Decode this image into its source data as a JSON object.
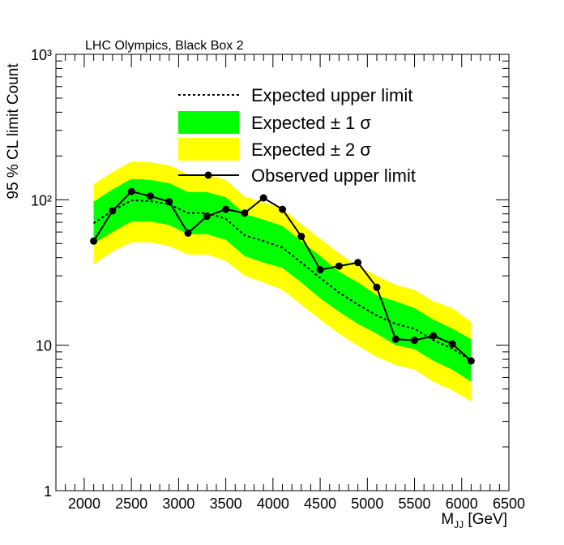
{
  "chart_data": {
    "type": "line",
    "title": "LHC Olympics, Black Box 2",
    "y_label": "95 % CL limit Count",
    "x_label": {
      "main": "M",
      "subscript": "JJ",
      "unit": "[GeV]"
    },
    "x": [
      2100,
      2300,
      2500,
      2700,
      2900,
      3100,
      3300,
      3500,
      3700,
      3900,
      4100,
      4300,
      4500,
      4700,
      4900,
      5100,
      5300,
      5500,
      5700,
      5900,
      6100
    ],
    "xlim": [
      1700,
      6500
    ],
    "xticks": [
      2000,
      2500,
      3000,
      3500,
      4000,
      4500,
      5000,
      5500,
      6000,
      6500
    ],
    "ylim": [
      1,
      1000
    ],
    "yscale": "log",
    "yticks": [
      1,
      10,
      {
        "value": 100,
        "label": "10²"
      },
      {
        "value": 1000,
        "label": "10³"
      }
    ],
    "series": [
      {
        "name": "Expected upper limit",
        "style": "dotted",
        "color": "#000000",
        "values": [
          69,
          84,
          99,
          98,
          93,
          81,
          81,
          74,
          57,
          52,
          47,
          37,
          29,
          23,
          19,
          16,
          14,
          13,
          10.8,
          9.5,
          7.8
        ]
      },
      {
        "name": "Expected ± 1 σ",
        "style": "band",
        "color": "#00ff00",
        "upper": [
          97,
          118,
          139,
          137,
          130,
          113,
          113,
          104,
          80,
          73,
          66,
          52,
          41,
          32,
          27,
          22,
          20,
          18,
          15,
          13,
          11
        ],
        "lower": [
          50,
          60,
          71,
          71,
          67,
          58,
          58,
          53,
          41,
          37,
          34,
          27,
          21,
          17,
          14,
          12,
          10,
          9.4,
          7.8,
          6.8,
          5.6
        ]
      },
      {
        "name": "Expected ± 2 σ",
        "style": "band",
        "color": "#ffff00",
        "upper": [
          128,
          155,
          183,
          181,
          172,
          150,
          150,
          137,
          105,
          96,
          87,
          68,
          54,
          43,
          35,
          30,
          26,
          24,
          20,
          18,
          14.4
        ],
        "lower": [
          36,
          44,
          51,
          51,
          48,
          42,
          42,
          38,
          30,
          27,
          24,
          19,
          15,
          12,
          9.9,
          8.3,
          7.3,
          6.8,
          5.6,
          4.9,
          4.1
        ]
      },
      {
        "name": "Observed upper limit",
        "style": "markers",
        "color": "#000000",
        "values": [
          52,
          84,
          114,
          106,
          97,
          59,
          77,
          86,
          81,
          103,
          86,
          56,
          33,
          35,
          37,
          25,
          11,
          10.8,
          11.6,
          10.2,
          7.8
        ]
      }
    ]
  }
}
